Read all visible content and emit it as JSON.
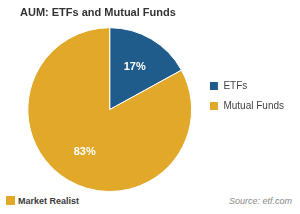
{
  "chart_data": {
    "type": "pie",
    "title": "AUM: ETFs and Mutual Funds",
    "categories": [
      "ETFs",
      "Mutual Funds"
    ],
    "values": [
      17,
      83
    ],
    "value_labels": [
      "17%",
      "83%"
    ],
    "colors": [
      "#1f5c8b",
      "#e1a829"
    ],
    "data_labels": true,
    "legend": "right",
    "source": "Source: etf.com",
    "logo": "Market Realist"
  }
}
